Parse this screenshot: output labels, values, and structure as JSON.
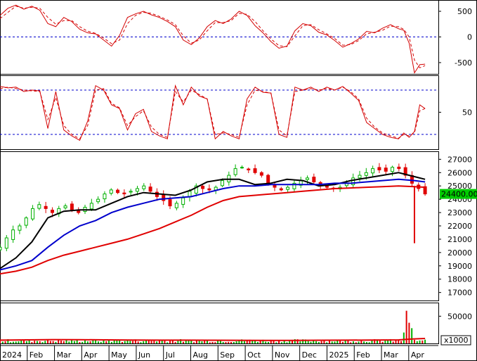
{
  "chart_data": [
    {
      "type": "line",
      "panel": "macd",
      "ylim": [
        -720,
        720
      ],
      "yticks": [
        "500",
        "0",
        "-500"
      ],
      "ytick_values": [
        500,
        0,
        -500
      ],
      "reference_lines": [
        0
      ],
      "series": [
        {
          "color": "#d40000",
          "style": "solid",
          "x": [
            0,
            3,
            6,
            9,
            12,
            15,
            18,
            21,
            24,
            27,
            30,
            33,
            36,
            39,
            42,
            45,
            48,
            51,
            54,
            57,
            60,
            63,
            66,
            69,
            72,
            75,
            78,
            81,
            84,
            87,
            90,
            93,
            96,
            99,
            102,
            105,
            108,
            111,
            114,
            117,
            120,
            123,
            126,
            129,
            132,
            135,
            138,
            141,
            144,
            147,
            150,
            152,
            154,
            156,
            158,
            160
          ],
          "y": [
            420,
            560,
            620,
            540,
            600,
            520,
            260,
            200,
            380,
            300,
            150,
            80,
            60,
            -60,
            -180,
            30,
            380,
            450,
            500,
            430,
            380,
            300,
            200,
            -60,
            -150,
            -20,
            200,
            320,
            260,
            350,
            500,
            420,
            220,
            80,
            -90,
            -220,
            -180,
            120,
            260,
            220,
            90,
            40,
            -70,
            -200,
            -130,
            -40,
            110,
            80,
            170,
            240,
            160,
            130,
            -120,
            -700,
            -540,
            -530
          ]
        },
        {
          "color": "#d40000",
          "style": "dashed",
          "x": [
            0,
            3,
            6,
            9,
            12,
            15,
            18,
            21,
            24,
            27,
            30,
            33,
            36,
            39,
            42,
            45,
            48,
            51,
            54,
            57,
            60,
            63,
            66,
            69,
            72,
            75,
            78,
            81,
            84,
            87,
            90,
            93,
            96,
            99,
            102,
            105,
            108,
            111,
            114,
            117,
            120,
            123,
            126,
            129,
            132,
            135,
            138,
            141,
            144,
            147,
            150,
            152,
            154,
            156,
            158,
            160
          ],
          "y": [
            360,
            480,
            600,
            560,
            580,
            560,
            380,
            250,
            320,
            320,
            200,
            110,
            70,
            -20,
            -130,
            -60,
            260,
            420,
            480,
            460,
            400,
            330,
            240,
            20,
            -120,
            -60,
            120,
            280,
            280,
            320,
            460,
            440,
            300,
            120,
            -40,
            -170,
            -190,
            20,
            220,
            240,
            140,
            60,
            -30,
            -160,
            -150,
            -70,
            60,
            90,
            130,
            210,
            200,
            150,
            0,
            -450,
            -600,
            -560
          ]
        }
      ]
    },
    {
      "type": "line",
      "panel": "stochastic",
      "ylim": [
        0,
        100
      ],
      "yticks": [
        "50"
      ],
      "ytick_values": [
        50
      ],
      "reference_lines": [
        80,
        20
      ],
      "series": [
        {
          "color": "#d40000",
          "style": "solid",
          "x": [
            0,
            3,
            6,
            9,
            12,
            15,
            18,
            21,
            24,
            27,
            30,
            33,
            36,
            39,
            42,
            45,
            48,
            51,
            54,
            57,
            60,
            63,
            66,
            69,
            72,
            75,
            78,
            81,
            84,
            87,
            90,
            93,
            96,
            99,
            102,
            105,
            108,
            111,
            114,
            117,
            120,
            123,
            126,
            129,
            132,
            135,
            138,
            141,
            144,
            147,
            150,
            152,
            154,
            156,
            158,
            160
          ],
          "y": [
            85,
            83,
            84,
            78,
            80,
            79,
            28,
            78,
            26,
            18,
            12,
            38,
            86,
            80,
            60,
            55,
            26,
            48,
            54,
            24,
            18,
            14,
            86,
            60,
            84,
            72,
            68,
            14,
            24,
            18,
            14,
            68,
            84,
            77,
            76,
            20,
            16,
            84,
            80,
            84,
            78,
            84,
            80,
            85,
            76,
            66,
            36,
            28,
            20,
            16,
            14,
            22,
            16,
            24,
            60,
            55
          ]
        },
        {
          "color": "#d40000",
          "style": "dashed",
          "x": [
            0,
            3,
            6,
            9,
            12,
            15,
            18,
            21,
            24,
            27,
            30,
            33,
            36,
            39,
            42,
            45,
            48,
            51,
            54,
            57,
            60,
            63,
            66,
            69,
            72,
            75,
            78,
            81,
            84,
            87,
            90,
            93,
            96,
            99,
            102,
            105,
            108,
            111,
            114,
            117,
            120,
            123,
            126,
            129,
            132,
            135,
            138,
            141,
            144,
            147,
            150,
            152,
            154,
            156,
            158,
            160
          ],
          "y": [
            82,
            84,
            82,
            80,
            79,
            78,
            40,
            70,
            32,
            20,
            14,
            32,
            80,
            82,
            62,
            56,
            32,
            44,
            52,
            30,
            20,
            16,
            78,
            64,
            80,
            74,
            68,
            20,
            22,
            20,
            16,
            60,
            80,
            78,
            76,
            26,
            18,
            78,
            80,
            82,
            80,
            82,
            80,
            84,
            78,
            68,
            42,
            30,
            22,
            18,
            15,
            20,
            18,
            22,
            52,
            55
          ]
        }
      ]
    },
    {
      "type": "candlestick",
      "panel": "price",
      "ylim": [
        16400,
        27600
      ],
      "yticks": [
        "27000",
        "26000",
        "25000",
        "24000",
        "23000",
        "22000",
        "21000",
        "20000",
        "19000",
        "18000",
        "17000"
      ],
      "ytick_values": [
        27000,
        26000,
        25000,
        24000,
        23000,
        22000,
        21000,
        20000,
        19000,
        18000,
        17000
      ],
      "last_price_label": "24400.00",
      "last_price": 24400,
      "close": [
        20400,
        21100,
        21700,
        22000,
        22600,
        23300,
        23600,
        23300,
        23000,
        23300,
        23500,
        23200,
        23000,
        23400,
        23700,
        24000,
        24400,
        24700,
        24500,
        24400,
        24600,
        24800,
        25000,
        24600,
        24200,
        23900,
        23500,
        23700,
        24100,
        24600,
        25000,
        24800,
        24700,
        24900,
        25400,
        25800,
        26300,
        26400,
        26200,
        26000,
        25800,
        25200,
        24900,
        24700,
        24900,
        25200,
        25400,
        25600,
        25300,
        25100,
        24900,
        24800,
        24900,
        25200,
        25600,
        25800,
        26000,
        26300,
        26200,
        26100,
        26400,
        26300,
        25800,
        25200,
        24800,
        24400
      ],
      "series": [
        {
          "color": "#000000",
          "style": "solid",
          "x": [
            0,
            6,
            12,
            18,
            24,
            30,
            36,
            42,
            48,
            54,
            60,
            66,
            72,
            78,
            84,
            90,
            96,
            102,
            108,
            114,
            120,
            126,
            132,
            138,
            144,
            150,
            156,
            160
          ],
          "y": [
            18800,
            19600,
            20800,
            22600,
            23100,
            23200,
            23200,
            23700,
            24200,
            24500,
            24400,
            24300,
            24700,
            25300,
            25500,
            25500,
            25100,
            25200,
            25500,
            25400,
            25000,
            25100,
            25400,
            25600,
            25800,
            26000,
            25700,
            25500
          ]
        },
        {
          "color": "#0000cc",
          "style": "solid",
          "x": [
            0,
            6,
            12,
            18,
            24,
            30,
            36,
            42,
            48,
            54,
            60,
            66,
            72,
            78,
            84,
            90,
            96,
            102,
            108,
            114,
            120,
            126,
            132,
            138,
            144,
            150,
            156,
            160
          ],
          "y": [
            18700,
            19000,
            19400,
            20400,
            21300,
            22000,
            22400,
            23000,
            23400,
            23700,
            24000,
            24100,
            24200,
            24500,
            24800,
            25000,
            25000,
            25100,
            25100,
            25100,
            25100,
            25200,
            25200,
            25300,
            25400,
            25500,
            25400,
            25300
          ]
        },
        {
          "color": "#e00000",
          "style": "solid",
          "x": [
            0,
            6,
            12,
            18,
            24,
            30,
            36,
            42,
            48,
            54,
            60,
            66,
            72,
            78,
            84,
            90,
            96,
            102,
            108,
            114,
            120,
            126,
            132,
            138,
            144,
            150,
            156,
            160
          ],
          "y": [
            18400,
            18600,
            18900,
            19400,
            19800,
            20100,
            20400,
            20700,
            21000,
            21400,
            21800,
            22300,
            22800,
            23400,
            23900,
            24200,
            24300,
            24400,
            24500,
            24600,
            24700,
            24800,
            24850,
            24900,
            24950,
            25000,
            24950,
            24900
          ]
        }
      ]
    },
    {
      "type": "bar",
      "panel": "volume",
      "ylim": [
        0,
        75000
      ],
      "yticks": [
        "50000"
      ],
      "ytick_values": [
        50000
      ],
      "unit_label": "x1000",
      "series": [
        {
          "color": "#e00000",
          "style": "solid",
          "x": [
            0,
            10,
            20,
            30,
            40,
            50,
            60,
            70,
            80,
            90,
            100,
            110,
            120,
            130,
            140,
            150,
            155,
            160
          ],
          "y": [
            6000,
            6500,
            7000,
            6800,
            6500,
            6200,
            6000,
            6000,
            5800,
            5700,
            5600,
            5600,
            5800,
            6000,
            6200,
            6500,
            8000,
            9000
          ]
        }
      ]
    }
  ],
  "x_axis": {
    "labels": [
      "2024",
      "Feb",
      "Mar",
      "Apr",
      "May",
      "Jun",
      "Jul",
      "Aug",
      "Sep",
      "Oct",
      "Nov",
      "Dec",
      "2025",
      "Feb",
      "Mar",
      "Apr"
    ]
  },
  "colors": {
    "up": "#00b000",
    "down": "#e00000",
    "reference": "#0000cc",
    "last_price_bg": "#00cc00"
  }
}
